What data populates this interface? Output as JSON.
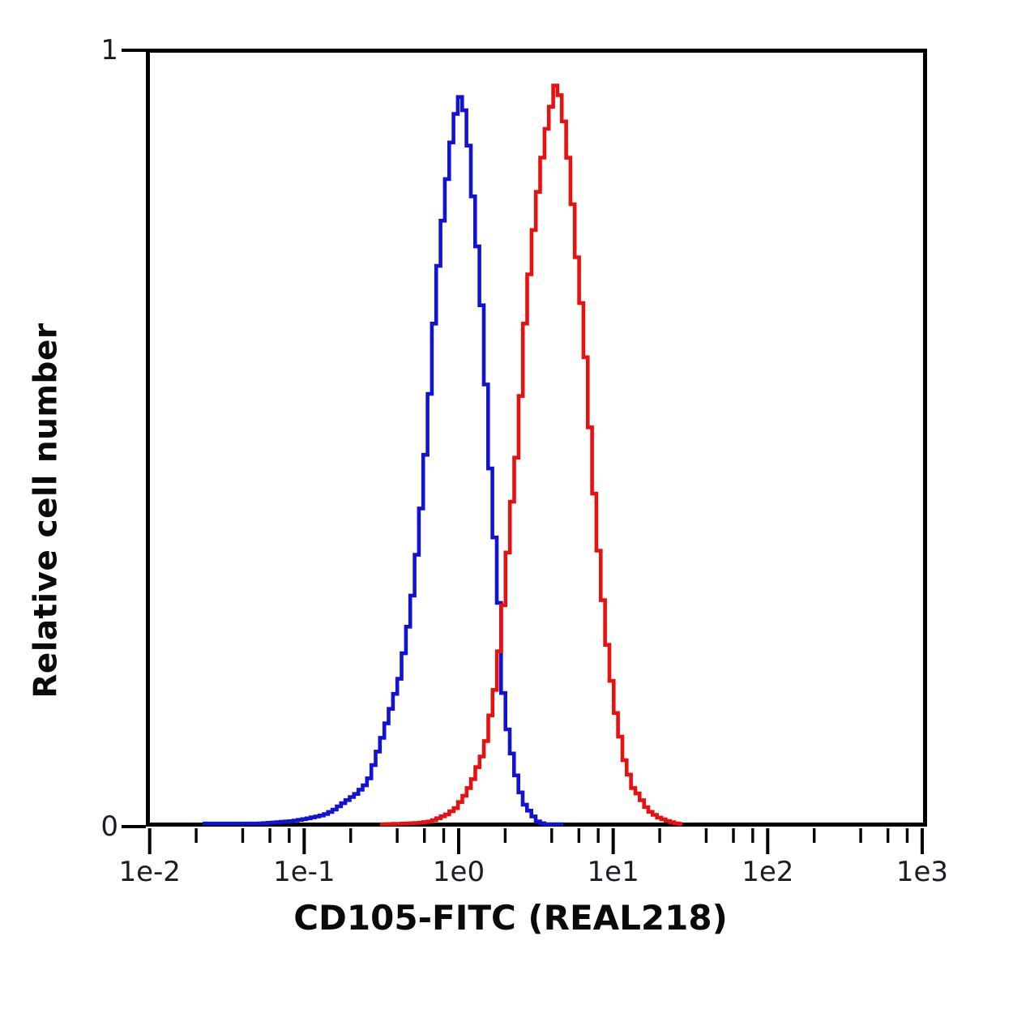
{
  "figure": {
    "background_color": "#ffffff",
    "axis_color": "#000000"
  },
  "chart_data": {
    "type": "line",
    "subtype": "flow-cytometry-overlay-histogram",
    "title": "",
    "xlabel": "CD105-FITC (REAL218)",
    "ylabel": "Relative cell number",
    "x_scale": "log10",
    "x_range": [
      0.01,
      1000
    ],
    "y_range": [
      0,
      1
    ],
    "grid": false,
    "legend_position": "none",
    "x_major_ticks": [
      {
        "label": "1e-2",
        "value": 0.01
      },
      {
        "label": "1e-1",
        "value": 0.1
      },
      {
        "label": "1e0",
        "value": 1
      },
      {
        "label": "1e1",
        "value": 10
      },
      {
        "label": "1e2",
        "value": 100
      },
      {
        "label": "1e3",
        "value": 1000
      }
    ],
    "x_minor_tick_values": [
      0.02,
      0.04,
      0.06,
      0.08,
      0.2,
      0.4,
      0.6,
      0.8,
      2,
      4,
      6,
      8,
      20,
      40,
      60,
      80,
      200,
      400,
      600,
      800
    ],
    "y_ticks": [
      {
        "label": "0",
        "value": 0
      },
      {
        "label": "1",
        "value": 1
      }
    ],
    "series": [
      {
        "name": "blue-histogram",
        "color": "#1212d4",
        "peak_x": 1.0,
        "peak_height": 0.943,
        "points": [
          [
            0.022,
            0.004
          ],
          [
            0.05,
            0.004
          ],
          [
            0.08,
            0.007
          ],
          [
            0.1,
            0.01
          ],
          [
            0.13,
            0.015
          ],
          [
            0.15,
            0.021
          ],
          [
            0.17,
            0.029
          ],
          [
            0.21,
            0.042
          ],
          [
            0.25,
            0.057
          ],
          [
            0.28,
            0.087
          ],
          [
            0.31,
            0.115
          ],
          [
            0.35,
            0.15
          ],
          [
            0.4,
            0.19
          ],
          [
            0.45,
            0.25
          ],
          [
            0.49,
            0.303
          ],
          [
            0.54,
            0.385
          ],
          [
            0.59,
            0.48
          ],
          [
            0.63,
            0.56
          ],
          [
            0.67,
            0.647
          ],
          [
            0.72,
            0.73
          ],
          [
            0.78,
            0.8
          ],
          [
            0.84,
            0.86
          ],
          [
            0.9,
            0.905
          ],
          [
            0.95,
            0.93
          ],
          [
            1.0,
            0.943
          ],
          [
            1.06,
            0.92
          ],
          [
            1.12,
            0.88
          ],
          [
            1.2,
            0.81
          ],
          [
            1.3,
            0.73
          ],
          [
            1.39,
            0.647
          ],
          [
            1.47,
            0.55
          ],
          [
            1.53,
            0.48
          ],
          [
            1.63,
            0.39
          ],
          [
            1.75,
            0.303
          ],
          [
            1.87,
            0.177
          ],
          [
            1.97,
            0.133
          ],
          [
            2.09,
            0.108
          ],
          [
            2.17,
            0.086
          ],
          [
            2.3,
            0.063
          ],
          [
            2.45,
            0.042
          ],
          [
            2.6,
            0.028
          ],
          [
            2.83,
            0.018
          ],
          [
            3.12,
            0.007
          ],
          [
            3.5,
            0.003
          ],
          [
            4.75,
            0.003
          ]
        ]
      },
      {
        "name": "red-histogram",
        "color": "#e81111",
        "peak_x": 4.1,
        "peak_height": 0.956,
        "points": [
          [
            0.31,
            0.003
          ],
          [
            0.45,
            0.004
          ],
          [
            0.55,
            0.005
          ],
          [
            0.65,
            0.007
          ],
          [
            0.82,
            0.016
          ],
          [
            0.93,
            0.024
          ],
          [
            1.05,
            0.039
          ],
          [
            1.18,
            0.057
          ],
          [
            1.26,
            0.073
          ],
          [
            1.34,
            0.087
          ],
          [
            1.42,
            0.097
          ],
          [
            1.47,
            0.115
          ],
          [
            1.54,
            0.139
          ],
          [
            1.6,
            0.157
          ],
          [
            1.66,
            0.177
          ],
          [
            1.8,
            0.24
          ],
          [
            1.92,
            0.303
          ],
          [
            2.1,
            0.4
          ],
          [
            2.3,
            0.48
          ],
          [
            2.45,
            0.56
          ],
          [
            2.6,
            0.647
          ],
          [
            2.8,
            0.72
          ],
          [
            3.0,
            0.78
          ],
          [
            3.3,
            0.85
          ],
          [
            3.6,
            0.9
          ],
          [
            3.9,
            0.935
          ],
          [
            4.1,
            0.956
          ],
          [
            4.4,
            0.94
          ],
          [
            4.8,
            0.89
          ],
          [
            5.2,
            0.82
          ],
          [
            5.6,
            0.74
          ],
          [
            6.2,
            0.647
          ],
          [
            6.6,
            0.57
          ],
          [
            7.0,
            0.48
          ],
          [
            7.6,
            0.38
          ],
          [
            8.2,
            0.303
          ],
          [
            9.0,
            0.22
          ],
          [
            10.0,
            0.15
          ],
          [
            11.5,
            0.084
          ],
          [
            13.0,
            0.05
          ],
          [
            14.0,
            0.042
          ],
          [
            16.3,
            0.021
          ],
          [
            19.0,
            0.012
          ],
          [
            22.0,
            0.007
          ],
          [
            25.0,
            0.004
          ],
          [
            28.0,
            0.003
          ]
        ]
      }
    ]
  }
}
